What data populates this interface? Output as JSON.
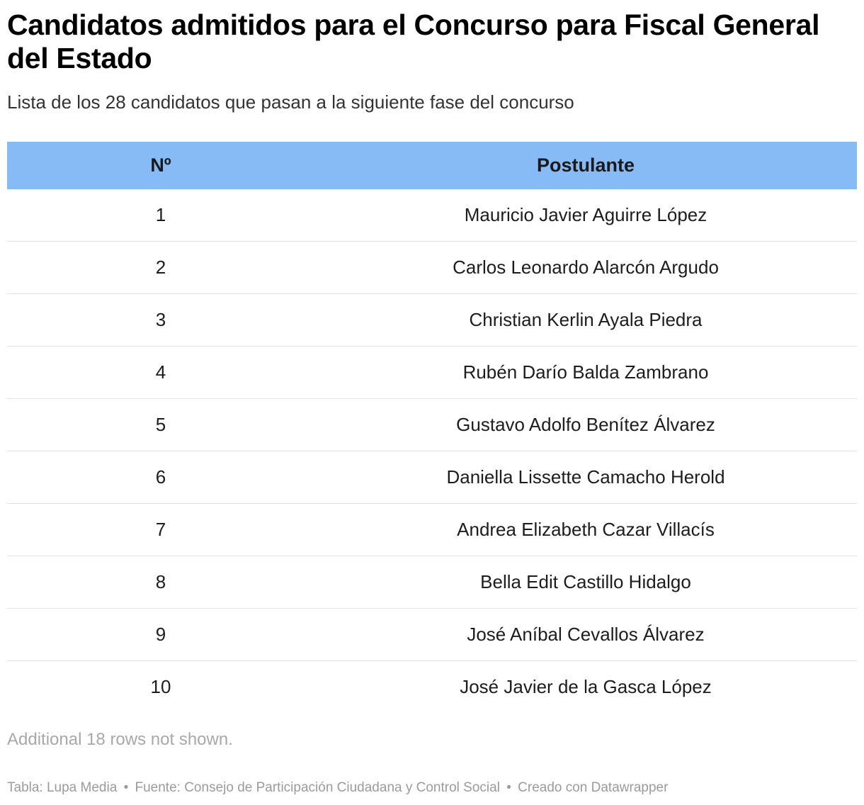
{
  "chart_data": {
    "type": "table",
    "title": "Candidatos admitidos para el Concurso para Fiscal General del Estado",
    "subtitle": "Lista de los 28 candidatos que pasan a la siguiente fase del concurso",
    "columns": [
      "Nº",
      "Postulante"
    ],
    "rows": [
      {
        "num": "1",
        "name": "Mauricio Javier Aguirre López"
      },
      {
        "num": "2",
        "name": "Carlos Leonardo Alarcón Argudo"
      },
      {
        "num": "3",
        "name": "Christian Kerlin Ayala Piedra"
      },
      {
        "num": "4",
        "name": "Rubén Darío Balda Zambrano"
      },
      {
        "num": "5",
        "name": "Gustavo Adolfo Benítez Álvarez"
      },
      {
        "num": "6",
        "name": "Daniella Lissette Camacho Herold"
      },
      {
        "num": "7",
        "name": "Andrea Elizabeth Cazar Villacís"
      },
      {
        "num": "8",
        "name": "Bella Edit Castillo Hidalgo"
      },
      {
        "num": "9",
        "name": "José Aníbal Cevallos Álvarez"
      },
      {
        "num": "10",
        "name": "José Javier de la Gasca López"
      }
    ],
    "header_color": "#86bbf5"
  },
  "note": "Additional 18 rows not shown.",
  "footer": {
    "table_credit": "Tabla: Lupa Media",
    "source": "Fuente: Consejo de Participación Ciudadana y Control Social",
    "made_with": "Creado con Datawrapper",
    "separator": "•"
  }
}
